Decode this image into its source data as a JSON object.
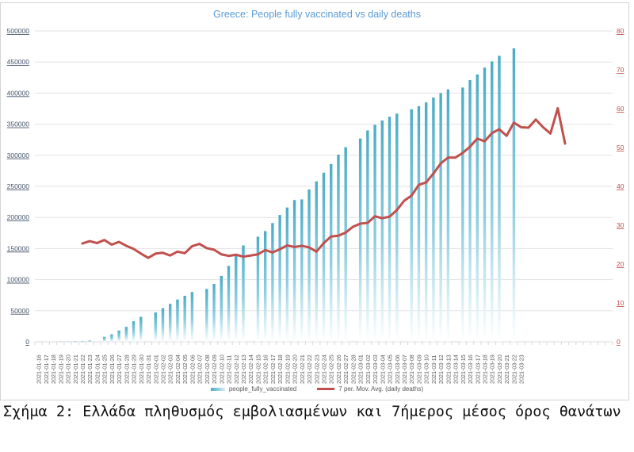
{
  "chart_data": {
    "type": "bar+line",
    "title": "Greece: People fully vaccinated vs daily deaths",
    "xlabel": "",
    "ylabel_left": "",
    "ylabel_right": "",
    "ylim_left": [
      0,
      500000
    ],
    "ylim_right": [
      0,
      80
    ],
    "yticks_left": [
      "0",
      "50000",
      "100000",
      "150000",
      "200000",
      "250000",
      "300000",
      "350000",
      "400000",
      "450000",
      "500000"
    ],
    "yticks_right": [
      "0",
      "10",
      "20",
      "30",
      "40",
      "50",
      "60",
      "70",
      "80"
    ],
    "grid": true,
    "legend_position": "bottom",
    "categories": [
      "2021-01-16",
      "2021-01-17",
      "2021-01-18",
      "2021-01-19",
      "2021-01-20",
      "2021-01-21",
      "2021-01-22",
      "2021-01-23",
      "2021-01-24",
      "2021-01-25",
      "2021-01-26",
      "2021-01-27",
      "2021-01-28",
      "2021-01-29",
      "2021-01-30",
      "2021-01-31",
      "2021-02-01",
      "2021-02-02",
      "2021-02-03",
      "2021-02-04",
      "2021-02-05",
      "2021-02-06",
      "2021-02-07",
      "2021-02-08",
      "2021-02-09",
      "2021-02-10",
      "2021-02-11",
      "2021-02-12",
      "2021-02-13",
      "2021-02-14",
      "2021-02-15",
      "2021-02-16",
      "2021-02-17",
      "2021-02-18",
      "2021-02-19",
      "2021-02-20",
      "2021-02-21",
      "2021-02-22",
      "2021-02-23",
      "2021-02-24",
      "2021-02-25",
      "2021-02-26",
      "2021-02-27",
      "2021-02-28",
      "2021-03-01",
      "2021-03-02",
      "2021-03-03",
      "2021-03-04",
      "2021-03-05",
      "2021-03-06",
      "2021-03-07",
      "2021-03-08",
      "2021-03-09",
      "2021-03-10",
      "2021-03-11",
      "2021-03-12",
      "2021-03-13",
      "2021-03-14",
      "2021-03-15",
      "2021-03-16",
      "2021-03-17",
      "2021-03-18",
      "2021-03-19",
      "2021-03-20",
      "2021-03-21",
      "2021-03-22",
      "2021-03-23"
    ],
    "blank_slots_after": 12,
    "series": [
      {
        "name": "people_fully_vaccinated",
        "type": "bar",
        "axis": "left",
        "color": "#4bacc6",
        "values": [
          0,
          0,
          0,
          200,
          400,
          1000,
          1200,
          2000,
          null,
          8000,
          12000,
          18000,
          24000,
          33000,
          40000,
          null,
          47000,
          54000,
          61000,
          68000,
          74000,
          80000,
          null,
          85000,
          93000,
          106000,
          122000,
          138000,
          155000,
          null,
          169000,
          178000,
          191000,
          204000,
          216000,
          228000,
          229000,
          245000,
          258000,
          272000,
          286000,
          301000,
          313000,
          null,
          327000,
          340000,
          349000,
          356000,
          362000,
          367000,
          null,
          374000,
          379000,
          385000,
          393000,
          400000,
          406000,
          null,
          409000,
          421000,
          430000,
          441000,
          451000,
          460000,
          null,
          472000,
          null
        ]
      },
      {
        "name": "7 per. Mov. Avg. (daily deaths)",
        "type": "line",
        "axis": "right",
        "color": "#c0504d",
        "values_by_slot": [
          null,
          null,
          null,
          null,
          null,
          null,
          25.3,
          25.9,
          25.4,
          26.2,
          25.0,
          25.7,
          24.7,
          23.9,
          22.7,
          21.6,
          22.7,
          22.9,
          22.2,
          23.2,
          22.8,
          24.6,
          25.2,
          24.1,
          23.7,
          22.5,
          22.1,
          22.4,
          21.9,
          22.2,
          22.5,
          23.6,
          23.0,
          23.8,
          24.8,
          24.4,
          24.7,
          24.3,
          23.2,
          25.4,
          27.1,
          27.3,
          28.1,
          29.6,
          30.4,
          30.6,
          32.3,
          31.8,
          32.2,
          33.9,
          36.3,
          37.6,
          40.4,
          41.0,
          43.3,
          45.9,
          47.4,
          47.4,
          48.6,
          50.2,
          52.3,
          51.6,
          53.7,
          54.7,
          53.0,
          56.4,
          55.2,
          55.1,
          57.2,
          55.2,
          53.6,
          60.1,
          51.0
        ]
      }
    ],
    "legend": [
      "people_fully_vaccinated",
      "7 per. Mov. Avg. (daily deaths)"
    ]
  },
  "caption": "Σχήμα 2: Ελλάδα πληθυσμός εμβολιασμένων και 7ήμερος μέσος όρος θανάτων"
}
